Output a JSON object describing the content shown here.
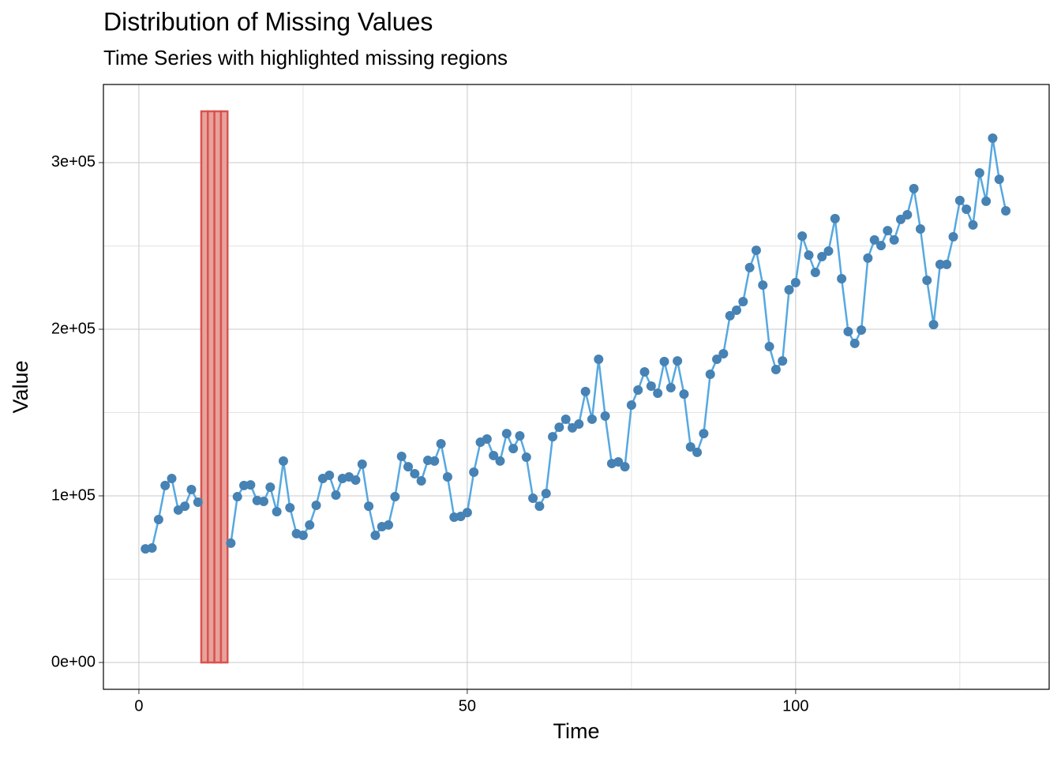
{
  "chart_data": {
    "type": "line",
    "title": "Distribution of Missing Values",
    "subtitle": "Time Series with highlighted missing regions",
    "x_label": "Time",
    "y_label": "Value",
    "x": [
      1,
      2,
      3,
      4,
      5,
      6,
      7,
      8,
      9,
      10,
      11,
      12,
      13,
      14,
      15,
      16,
      17,
      18,
      19,
      20,
      21,
      22,
      23,
      24,
      25,
      26,
      27,
      28,
      29,
      30,
      31,
      32,
      33,
      34,
      35,
      36,
      37,
      38,
      39,
      40,
      41,
      42,
      43,
      44,
      45,
      46,
      47,
      48,
      49,
      50,
      51,
      52,
      53,
      54,
      55,
      56,
      57,
      58,
      59,
      60,
      61,
      62,
      63,
      64,
      65,
      66,
      67,
      68,
      69,
      70,
      71,
      72,
      73,
      74,
      75,
      76,
      77,
      78,
      79,
      80,
      81,
      82,
      83,
      84,
      85,
      86,
      87,
      88,
      89,
      90,
      91,
      92,
      93,
      94,
      95,
      96,
      97,
      98,
      99,
      100,
      101,
      102,
      103,
      104,
      105,
      106,
      107,
      108,
      109,
      110,
      111,
      112,
      113,
      114,
      115,
      116,
      117,
      118,
      119,
      120,
      121,
      122,
      123,
      124,
      125,
      126,
      127,
      128,
      129,
      130,
      131,
      132
    ],
    "series": [
      {
        "name": "Value",
        "color": "#56a8e0",
        "point_color": "#4682b4",
        "values": [
          68200,
          68700,
          85800,
          106200,
          110400,
          91500,
          93800,
          103800,
          96200,
          null,
          null,
          null,
          null,
          71600,
          99500,
          106200,
          106600,
          97200,
          96700,
          105200,
          90500,
          120900,
          92900,
          77300,
          76300,
          82500,
          94300,
          110400,
          112300,
          100500,
          110400,
          111400,
          109500,
          119000,
          93800,
          76300,
          81500,
          82500,
          99500,
          123700,
          117500,
          113300,
          109000,
          121300,
          120900,
          131300,
          111400,
          87200,
          87700,
          90000,
          114200,
          132200,
          134100,
          124200,
          120900,
          137400,
          128400,
          136000,
          123200,
          98600,
          93800,
          101400,
          135500,
          141200,
          146000,
          140800,
          143100,
          162600,
          146000,
          182000,
          147900,
          119400,
          120400,
          117500,
          154500,
          163500,
          174400,
          165900,
          161600,
          180600,
          164900,
          181000,
          161100,
          129400,
          126100,
          137400,
          173000,
          182000,
          185300,
          208100,
          211400,
          216600,
          237000,
          247400,
          226500,
          189600,
          175800,
          181000,
          223700,
          228000,
          255900,
          244500,
          234100,
          243600,
          246900,
          266400,
          230300,
          198600,
          191500,
          199500,
          242700,
          253600,
          250200,
          259200,
          253600,
          265900,
          268700,
          284400,
          260200,
          229400,
          202800,
          238900,
          238900,
          255500,
          277300,
          272000,
          262600,
          293800,
          276800,
          314700,
          290000,
          271100
        ]
      }
    ],
    "missing_regions": {
      "x": [
        10,
        11,
        12,
        13
      ],
      "values": [
        330800,
        330800,
        330800,
        330800
      ],
      "color": "#e8a29c",
      "edge_color": "#d9534f"
    },
    "xlim": [
      -5.4,
      138.6
    ],
    "ylim": [
      -16100,
      346900
    ],
    "xticks": [
      0,
      50,
      100
    ],
    "x_minor_ticks": [
      25,
      75,
      125
    ],
    "yticks": [
      {
        "value": 0,
        "label": "0e+00"
      },
      {
        "value": 100000,
        "label": "1e+05"
      },
      {
        "value": 200000,
        "label": "2e+05"
      },
      {
        "value": 300000,
        "label": "3e+05"
      }
    ],
    "y_minor_ticks": [
      50000,
      150000,
      250000
    ],
    "grid": true
  }
}
